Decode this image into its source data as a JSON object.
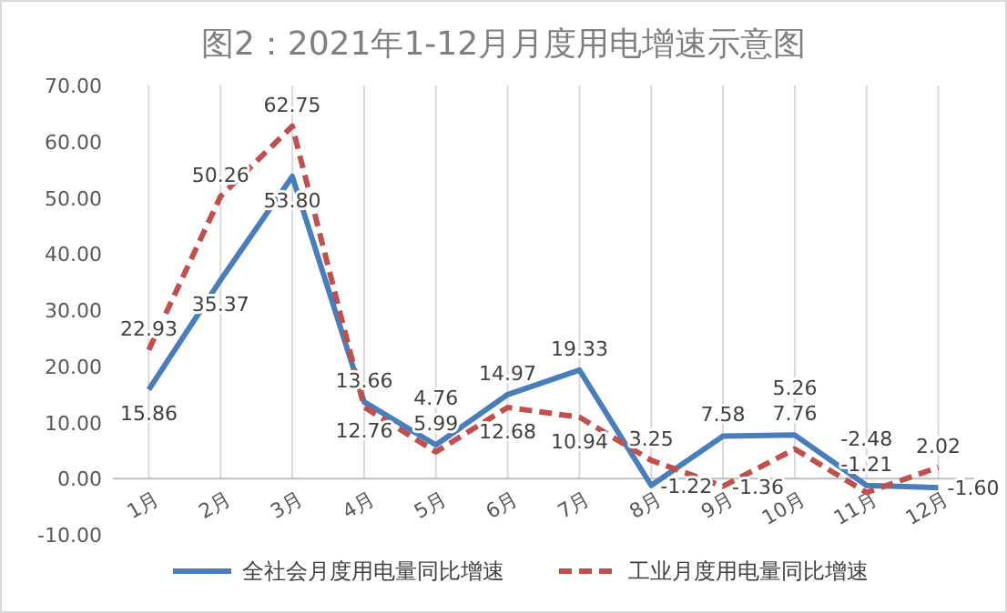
{
  "chart_data": {
    "type": "line",
    "title": "图2：2021年1-12月月度用电增速示意图",
    "categories": [
      "1月",
      "2月",
      "3月",
      "4月",
      "5月",
      "6月",
      "7月",
      "8月",
      "9月",
      "10月",
      "11月",
      "12月"
    ],
    "series": [
      {
        "name": "全社会月度用电量同比增速",
        "color": "#4a7ebb",
        "line_style": "solid",
        "values": [
          15.86,
          35.37,
          53.8,
          13.66,
          5.99,
          14.97,
          19.33,
          -1.22,
          7.58,
          7.76,
          -1.21,
          -1.6
        ],
        "value_labels": [
          "15.86",
          "35.37",
          "53.80",
          "13.66",
          "5.99",
          "14.97",
          "19.33",
          "-1.22",
          "7.58",
          "7.76",
          "-1.21",
          "-1.60"
        ]
      },
      {
        "name": "工业月度用电量同比增速",
        "color": "#c0504d",
        "line_style": "dashed",
        "values": [
          22.93,
          50.26,
          62.75,
          12.76,
          4.76,
          12.68,
          10.94,
          3.25,
          -1.36,
          5.26,
          -2.48,
          2.02
        ],
        "value_labels": [
          "22.93",
          "50.26",
          "62.75",
          "12.76",
          "4.76",
          "12.68",
          "10.94",
          "3.25",
          "-1.36",
          "5.26",
          "-2.48",
          "2.02"
        ]
      }
    ],
    "ylim": [
      -10,
      70
    ],
    "yticks": [
      {
        "value": -10,
        "label": "-10.00"
      },
      {
        "value": 0,
        "label": "0.00"
      },
      {
        "value": 10,
        "label": "10.00"
      },
      {
        "value": 20,
        "label": "20.00"
      },
      {
        "value": 30,
        "label": "30.00"
      },
      {
        "value": 40,
        "label": "40.00"
      },
      {
        "value": 50,
        "label": "50.00"
      },
      {
        "value": 60,
        "label": "60.00"
      },
      {
        "value": 70,
        "label": "70.00"
      }
    ],
    "grid": "x",
    "legend": "bottom",
    "marker": "none"
  }
}
